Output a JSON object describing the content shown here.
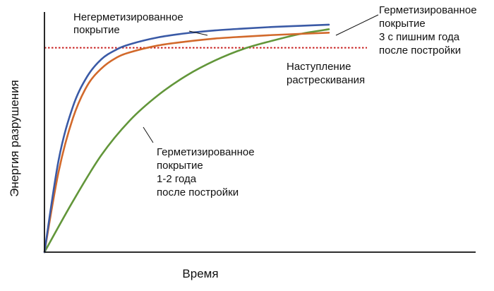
{
  "chart_data": {
    "type": "line",
    "xlabel": "Время",
    "ylabel": "Энергия разрушения",
    "xlim": [
      0,
      100
    ],
    "ylim": [
      0,
      100
    ],
    "grid": false,
    "tick_labels": false,
    "colors": {
      "unsealed": "#3a5aa6",
      "sealed_3yr": "#d2692b",
      "sealed_1_2yr": "#62963a",
      "threshold": "#c81e1e",
      "axis": "#111111"
    },
    "series": [
      {
        "key": "unsealed",
        "x": [
          0,
          5,
          10,
          15,
          20,
          25,
          30,
          40,
          50,
          60,
          70,
          80,
          90,
          100
        ],
        "y": [
          0,
          40,
          63,
          76,
          83.5,
          87.5,
          90,
          93,
          94.8,
          96,
          96.8,
          97.5,
          98,
          98.5
        ]
      },
      {
        "key": "sealed_3yr",
        "x": [
          0,
          5,
          10,
          15,
          20,
          25,
          30,
          40,
          50,
          60,
          70,
          80,
          90,
          100
        ],
        "y": [
          0,
          35,
          58,
          72,
          79.5,
          84,
          86.5,
          89.5,
          91.2,
          92.5,
          93.3,
          94,
          94.5,
          95
        ]
      },
      {
        "key": "sealed_1_2yr",
        "x": [
          0,
          10,
          20,
          30,
          40,
          50,
          60,
          70,
          80,
          90,
          100
        ],
        "y": [
          0,
          22,
          42,
          57,
          68,
          76.5,
          83,
          88,
          91.5,
          94.5,
          96.5
        ]
      }
    ],
    "threshold": {
      "key": "threshold",
      "y": 88.5
    },
    "annotations": [
      {
        "key": "unsealed",
        "lines": [
          "Негерметизированное",
          "покрытие"
        ]
      },
      {
        "key": "sealed_3yr",
        "lines": [
          "Герметизированное",
          "покрытие",
          "3 с пишним года",
          "после постройки"
        ]
      },
      {
        "key": "threshold",
        "lines": [
          "Наступление",
          "растрескивания"
        ]
      },
      {
        "key": "sealed_1_2yr",
        "lines": [
          "Герметизированное",
          "покрытие",
          "1-2 года",
          "после постройки"
        ]
      }
    ]
  }
}
